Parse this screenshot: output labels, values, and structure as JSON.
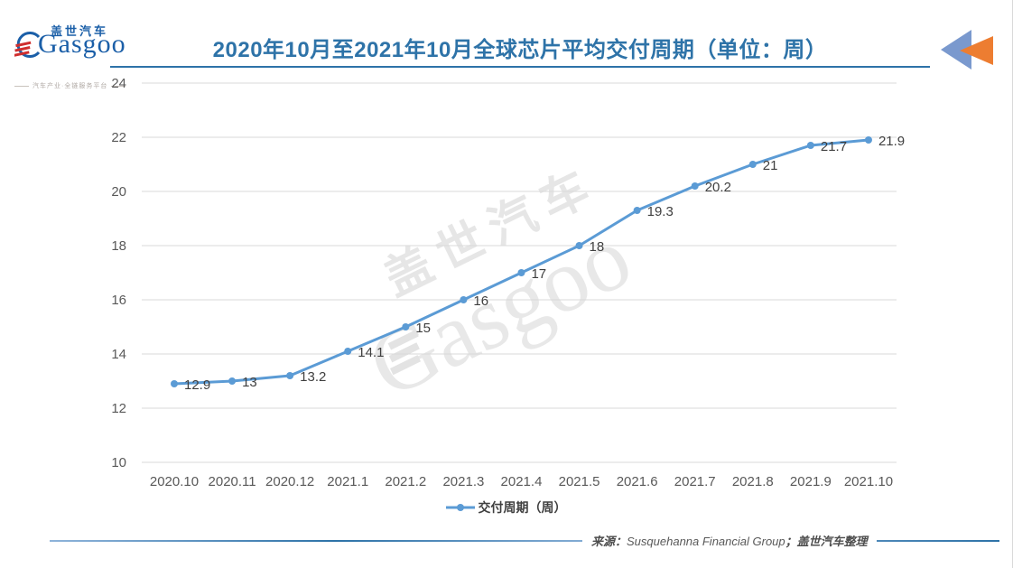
{
  "logo": {
    "cn": "盖世汽车",
    "en": "Gasgoo",
    "tagline": "汽车产业·全链服务平台"
  },
  "header": {
    "title": "2020年10月至2021年10月全球芯片平均交付周期（单位：周）"
  },
  "chart_data": {
    "type": "line",
    "title": "2020年10月至2021年10月全球芯片平均交付周期（单位：周）",
    "categories": [
      "2020.10",
      "2020.11",
      "2020.12",
      "2021.1",
      "2021.2",
      "2021.3",
      "2021.4",
      "2021.5",
      "2021.6",
      "2021.7",
      "2021.8",
      "2021.9",
      "2021.10"
    ],
    "series": [
      {
        "name": "交付周期（周）",
        "values": [
          12.9,
          13,
          13.2,
          14.1,
          15,
          16,
          17,
          18,
          19.3,
          20.2,
          21,
          21.7,
          21.9
        ]
      }
    ],
    "xlabel": "",
    "ylabel": "",
    "ylim": [
      10,
      24
    ],
    "ytick_step": 2,
    "grid": true,
    "legend_position": "bottom",
    "line_color": "#5B9BD5",
    "gridline_color": "#d9d9d9",
    "tick_color": "#595959",
    "data_label_color": "#3f3f3f"
  },
  "watermark": {
    "cn": "盖世汽车",
    "en": "Gasgoo"
  },
  "footer": {
    "source_prefix": "来源：",
    "source_en": "Susquehanna Financial Group",
    "source_sep": "；",
    "source_cn": "盖世汽车整理"
  }
}
